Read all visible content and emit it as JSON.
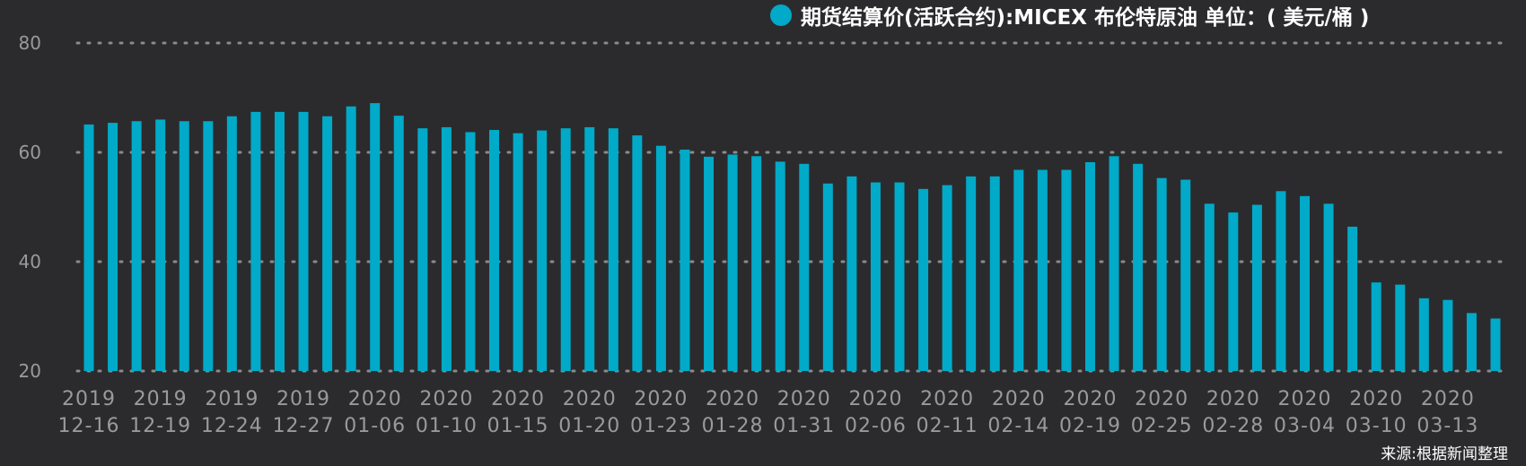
{
  "chart_data": {
    "type": "bar",
    "legend_position": "top-right",
    "grid": true,
    "ylim": [
      20,
      80
    ],
    "yticks": [
      20,
      40,
      60,
      80
    ],
    "series": [
      {
        "name": "期货结算价(活跃合约):MICEX 布伦特原油 单位：( 美元/桶 )",
        "color": "#00aac8",
        "values": [
          65.1,
          65.4,
          65.7,
          66.0,
          65.7,
          65.7,
          66.6,
          67.4,
          67.4,
          67.4,
          66.6,
          68.4,
          69.0,
          66.7,
          64.4,
          64.6,
          63.7,
          64.1,
          63.5,
          64.0,
          64.4,
          64.6,
          64.4,
          63.1,
          61.2,
          60.5,
          59.2,
          59.6,
          59.3,
          58.3,
          57.9,
          54.3,
          55.6,
          54.5,
          54.5,
          53.3,
          54.0,
          55.6,
          55.6,
          56.8,
          56.8,
          56.8,
          58.2,
          59.3,
          57.9,
          55.3,
          55.0,
          50.6,
          49.0,
          50.4,
          52.9,
          52.0,
          50.6,
          46.4,
          36.2,
          35.8,
          33.3,
          33.0,
          30.6,
          29.6
        ]
      }
    ],
    "x_tick_labels": [
      {
        "year": "2019",
        "date": "12-16"
      },
      {
        "year": "2019",
        "date": "12-19"
      },
      {
        "year": "2019",
        "date": "12-24"
      },
      {
        "year": "2019",
        "date": "12-27"
      },
      {
        "year": "2020",
        "date": "01-06"
      },
      {
        "year": "2020",
        "date": "01-10"
      },
      {
        "year": "2020",
        "date": "01-15"
      },
      {
        "year": "2020",
        "date": "01-20"
      },
      {
        "year": "2020",
        "date": "01-23"
      },
      {
        "year": "2020",
        "date": "01-28"
      },
      {
        "year": "2020",
        "date": "01-31"
      },
      {
        "year": "2020",
        "date": "02-06"
      },
      {
        "year": "2020",
        "date": "02-11"
      },
      {
        "year": "2020",
        "date": "02-14"
      },
      {
        "year": "2020",
        "date": "02-19"
      },
      {
        "year": "2020",
        "date": "02-25"
      },
      {
        "year": "2020",
        "date": "02-28"
      },
      {
        "year": "2020",
        "date": "03-04"
      },
      {
        "year": "2020",
        "date": "03-10"
      },
      {
        "year": "2020",
        "date": "03-13"
      }
    ]
  },
  "source_note": "来源:根据新闻整理"
}
